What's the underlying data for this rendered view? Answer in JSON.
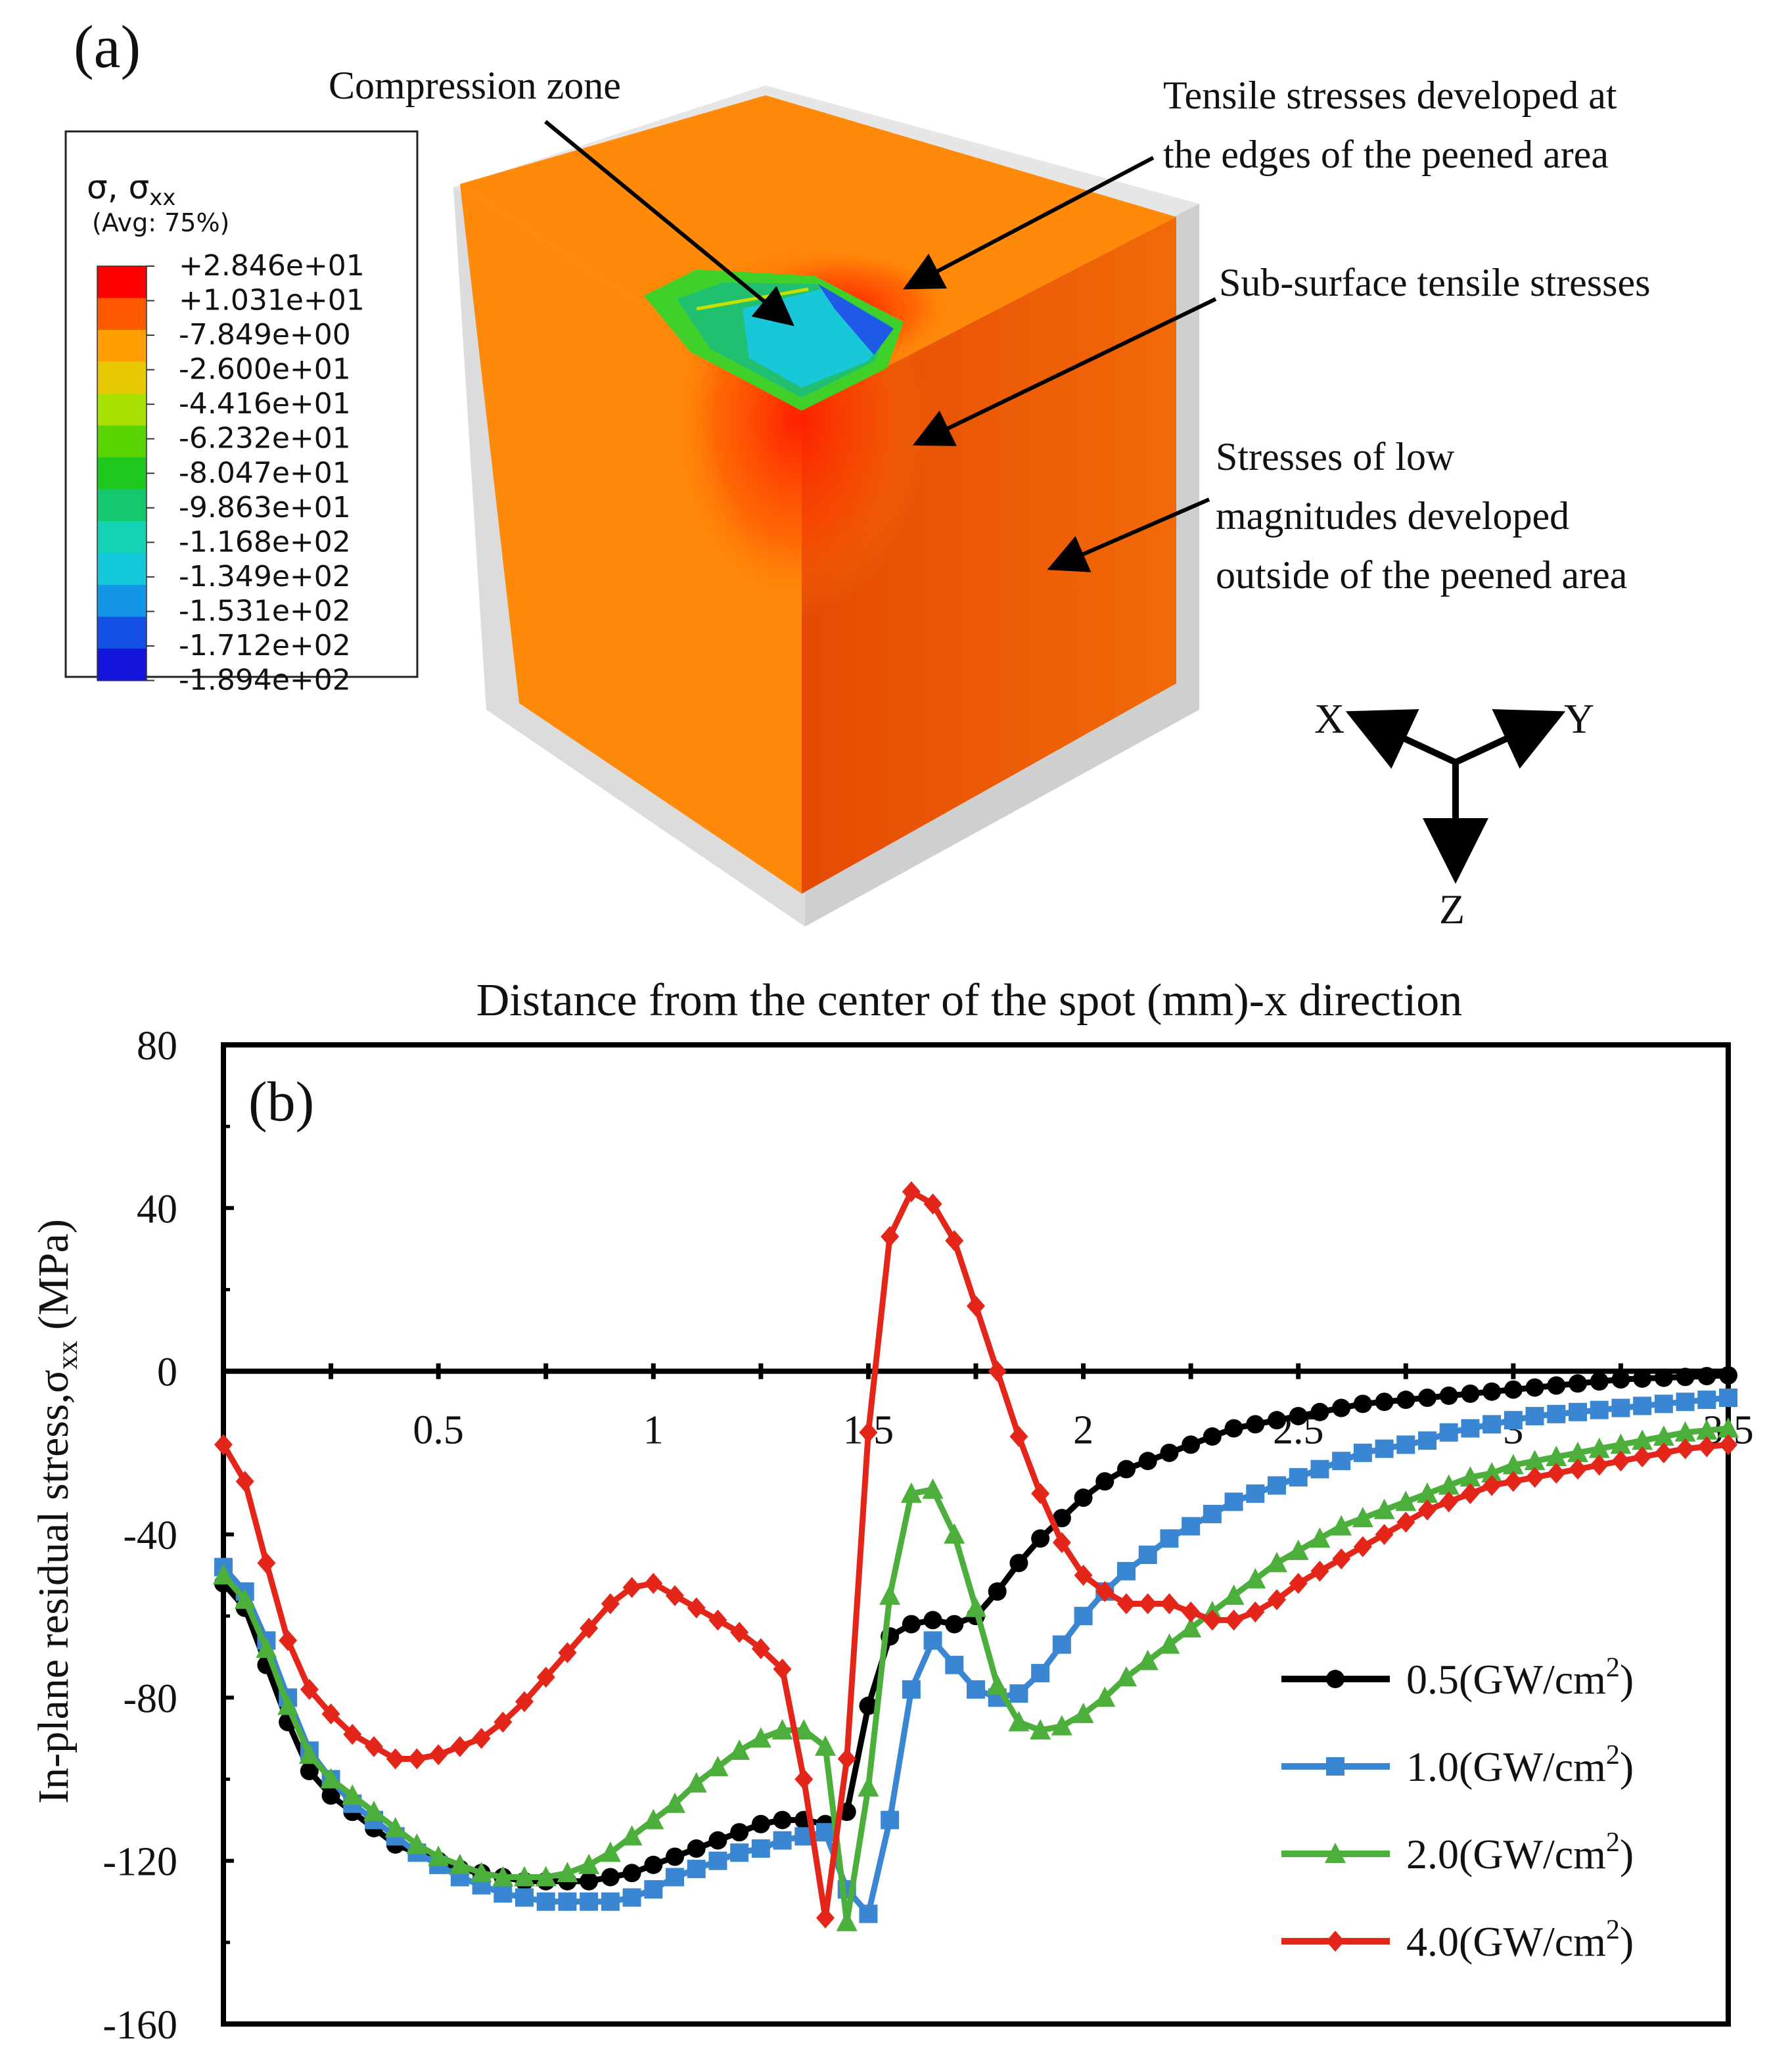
{
  "panel_a": {
    "label": "(a)",
    "legend": {
      "title": "σ, σ",
      "title_sub": "xx",
      "subtitle": "(Avg: 75%)",
      "values": [
        "+2.846e+01",
        "+1.031e+01",
        "-7.849e+00",
        "-2.600e+01",
        "-4.416e+01",
        "-6.232e+01",
        "-8.047e+01",
        "-9.863e+01",
        "-1.168e+02",
        "-1.349e+02",
        "-1.531e+02",
        "-1.712e+02",
        "-1.894e+02"
      ],
      "colors": [
        "#ff0000",
        "#ff5a00",
        "#ff9e00",
        "#e5c800",
        "#a8e000",
        "#5ad400",
        "#1ec81e",
        "#14c86e",
        "#14d2b4",
        "#14c8dc",
        "#1496e6",
        "#1450e6",
        "#1414dc"
      ]
    },
    "annotations": {
      "compression": "Compression zone",
      "tensile_edges_1": "Tensile stresses developed at",
      "tensile_edges_2": "the edges of the peened area",
      "subsurface": "Sub-surface tensile stresses",
      "low_1": "Stresses of low",
      "low_2": "magnitudes developed",
      "low_3": "outside of the peened area"
    },
    "axes": {
      "x": "X",
      "y": "Y",
      "z": "Z"
    },
    "colors": {
      "orange": "#ff8a0a",
      "orange_dark": "#ee5c05",
      "orange_side": "#f26a08",
      "grey": "#d3d3d3"
    }
  },
  "chart_data": {
    "type": "line",
    "panel_label": "(b)",
    "title": "Distance from the center of the spot (mm)-x direction",
    "xlabel": "Distance from the center of the spot (mm)-x direction",
    "ylabel": "In-plane residual stress,σ",
    "ylabel_sub": "xx",
    "ylabel_unit": " (MPa)",
    "xlim": [
      0,
      3.5
    ],
    "ylim": [
      -160,
      80
    ],
    "xticks": [
      0.5,
      1,
      1.5,
      2,
      2.5,
      3,
      3.5
    ],
    "xtick_labels": [
      "0.5",
      "1",
      "1.5",
      "2",
      "2.5",
      "3",
      "3.5"
    ],
    "yticks": [
      80,
      40,
      0,
      -40,
      -80,
      -120,
      -160
    ],
    "ytick_labels": [
      "80",
      "40",
      "0",
      "-40",
      "-80",
      "-120",
      "-160"
    ],
    "series": [
      {
        "name": "0.5(GW/cm",
        "sup": "2",
        "close": ")",
        "color": "#000000",
        "marker": "circle",
        "x": [
          0,
          0.05,
          0.1,
          0.15,
          0.2,
          0.25,
          0.3,
          0.35,
          0.4,
          0.45,
          0.5,
          0.55,
          0.6,
          0.65,
          0.7,
          0.75,
          0.8,
          0.85,
          0.9,
          0.95,
          1.0,
          1.05,
          1.1,
          1.15,
          1.2,
          1.25,
          1.3,
          1.35,
          1.4,
          1.45,
          1.5,
          1.55,
          1.6,
          1.65,
          1.7,
          1.75,
          1.8,
          1.85,
          1.9,
          1.95,
          2.0,
          2.05,
          2.1,
          2.15,
          2.2,
          2.25,
          2.3,
          2.35,
          2.4,
          2.45,
          2.5,
          2.55,
          2.6,
          2.65,
          2.7,
          2.75,
          2.8,
          2.85,
          2.9,
          2.95,
          3.0,
          3.05,
          3.1,
          3.15,
          3.2,
          3.25,
          3.3,
          3.35,
          3.4,
          3.45,
          3.5
        ],
        "y": [
          -52,
          -58,
          -72,
          -86,
          -98,
          -104,
          -108,
          -112,
          -116,
          -118,
          -120,
          -122,
          -123,
          -124,
          -125,
          -125,
          -125,
          -125,
          -124,
          -123,
          -121,
          -119,
          -117,
          -115,
          -113,
          -111,
          -110,
          -110,
          -111,
          -108,
          -82,
          -65,
          -62,
          -61,
          -62,
          -60,
          -54,
          -47,
          -41,
          -36,
          -31,
          -27,
          -24,
          -22,
          -20,
          -18,
          -16,
          -14,
          -13,
          -12,
          -11,
          -10,
          -9,
          -8,
          -7.5,
          -7,
          -6.5,
          -6,
          -5.5,
          -5,
          -4.5,
          -4,
          -3.5,
          -3,
          -2.5,
          -2,
          -1.8,
          -1.6,
          -1.4,
          -1.2,
          -1
        ]
      },
      {
        "name": "1.0(GW/cm",
        "sup": "2",
        "close": ")",
        "color": "#3a86d2",
        "marker": "square",
        "x": [
          0,
          0.05,
          0.1,
          0.15,
          0.2,
          0.25,
          0.3,
          0.35,
          0.4,
          0.45,
          0.5,
          0.55,
          0.6,
          0.65,
          0.7,
          0.75,
          0.8,
          0.85,
          0.9,
          0.95,
          1.0,
          1.05,
          1.1,
          1.15,
          1.2,
          1.25,
          1.3,
          1.35,
          1.4,
          1.45,
          1.5,
          1.55,
          1.6,
          1.65,
          1.7,
          1.75,
          1.8,
          1.85,
          1.9,
          1.95,
          2.0,
          2.05,
          2.1,
          2.15,
          2.2,
          2.25,
          2.3,
          2.35,
          2.4,
          2.45,
          2.5,
          2.55,
          2.6,
          2.65,
          2.7,
          2.75,
          2.8,
          2.85,
          2.9,
          2.95,
          3.0,
          3.05,
          3.1,
          3.15,
          3.2,
          3.25,
          3.3,
          3.35,
          3.4,
          3.45,
          3.5
        ],
        "y": [
          -48,
          -54,
          -66,
          -80,
          -93,
          -100,
          -106,
          -110,
          -114,
          -118,
          -121,
          -124,
          -126,
          -128,
          -129,
          -130,
          -130,
          -130,
          -130,
          -129,
          -127,
          -124,
          -122,
          -120,
          -118,
          -117,
          -115,
          -114,
          -113,
          -127,
          -133,
          -110,
          -78,
          -66,
          -72,
          -78,
          -80,
          -79,
          -74,
          -67,
          -60,
          -54,
          -49,
          -45,
          -41,
          -38,
          -35,
          -32,
          -30,
          -28,
          -26,
          -24,
          -22,
          -20,
          -19,
          -18,
          -17,
          -15,
          -14,
          -13,
          -12,
          -11,
          -10.5,
          -10,
          -9.5,
          -9,
          -8.5,
          -8,
          -7.5,
          -7,
          -6.5
        ]
      },
      {
        "name": "2.0(GW/cm",
        "sup": "2",
        "close": ")",
        "color": "#4caf3c",
        "marker": "triangle",
        "x": [
          0,
          0.05,
          0.1,
          0.15,
          0.2,
          0.25,
          0.3,
          0.35,
          0.4,
          0.45,
          0.5,
          0.55,
          0.6,
          0.65,
          0.7,
          0.75,
          0.8,
          0.85,
          0.9,
          0.95,
          1.0,
          1.05,
          1.1,
          1.15,
          1.2,
          1.25,
          1.3,
          1.35,
          1.4,
          1.45,
          1.5,
          1.55,
          1.6,
          1.65,
          1.7,
          1.75,
          1.8,
          1.85,
          1.9,
          1.95,
          2.0,
          2.05,
          2.1,
          2.15,
          2.2,
          2.25,
          2.3,
          2.35,
          2.4,
          2.45,
          2.5,
          2.55,
          2.6,
          2.65,
          2.7,
          2.75,
          2.8,
          2.85,
          2.9,
          2.95,
          3.0,
          3.05,
          3.1,
          3.15,
          3.2,
          3.25,
          3.3,
          3.35,
          3.4,
          3.45,
          3.5
        ],
        "y": [
          -50,
          -56,
          -68,
          -82,
          -94,
          -100,
          -104,
          -108,
          -112,
          -116,
          -119,
          -121,
          -123,
          -124,
          -124,
          -124,
          -123,
          -121,
          -118,
          -114,
          -110,
          -106,
          -101,
          -97,
          -93,
          -90,
          -88,
          -88,
          -92,
          -135,
          -102,
          -55,
          -30,
          -29,
          -40,
          -58,
          -77,
          -86,
          -88,
          -87,
          -84,
          -80,
          -75,
          -71,
          -67,
          -63,
          -59,
          -55,
          -51,
          -47,
          -44,
          -41,
          -38,
          -36,
          -34,
          -32,
          -30,
          -28,
          -26,
          -25,
          -23,
          -22,
          -21,
          -20,
          -19,
          -18,
          -17,
          -16,
          -15,
          -14.5,
          -14
        ]
      },
      {
        "name": "4.0(GW/cm",
        "sup": "2",
        "close": ")",
        "color": "#e32619",
        "marker": "diamond",
        "x": [
          0,
          0.05,
          0.1,
          0.15,
          0.2,
          0.25,
          0.3,
          0.35,
          0.4,
          0.45,
          0.5,
          0.55,
          0.6,
          0.65,
          0.7,
          0.75,
          0.8,
          0.85,
          0.9,
          0.95,
          1.0,
          1.05,
          1.1,
          1.15,
          1.2,
          1.25,
          1.3,
          1.35,
          1.4,
          1.45,
          1.5,
          1.55,
          1.6,
          1.65,
          1.7,
          1.75,
          1.8,
          1.85,
          1.9,
          1.95,
          2.0,
          2.05,
          2.1,
          2.15,
          2.2,
          2.25,
          2.3,
          2.35,
          2.4,
          2.45,
          2.5,
          2.55,
          2.6,
          2.65,
          2.7,
          2.75,
          2.8,
          2.85,
          2.9,
          2.95,
          3.0,
          3.05,
          3.1,
          3.15,
          3.2,
          3.25,
          3.3,
          3.35,
          3.4,
          3.45,
          3.5
        ],
        "y": [
          -18,
          -27,
          -47,
          -66,
          -78,
          -84,
          -89,
          -92,
          -95,
          -95,
          -94,
          -92,
          -90,
          -86,
          -81,
          -75,
          -69,
          -63,
          -57,
          -53,
          -52,
          -55,
          -58,
          -61,
          -64,
          -68,
          -73,
          -100,
          -134,
          -95,
          -15,
          33,
          44,
          41,
          32,
          16,
          0,
          -16,
          -30,
          -42,
          -50,
          -54,
          -57,
          -57,
          -57,
          -59,
          -61,
          -61,
          -59,
          -56,
          -52,
          -49,
          -46,
          -43,
          -40,
          -37,
          -34,
          -32,
          -30,
          -28,
          -27,
          -26,
          -25,
          -24,
          -23,
          -22,
          -21,
          -20,
          -19,
          -18.5,
          -18
        ]
      }
    ],
    "legend_position": "bottom-right"
  }
}
